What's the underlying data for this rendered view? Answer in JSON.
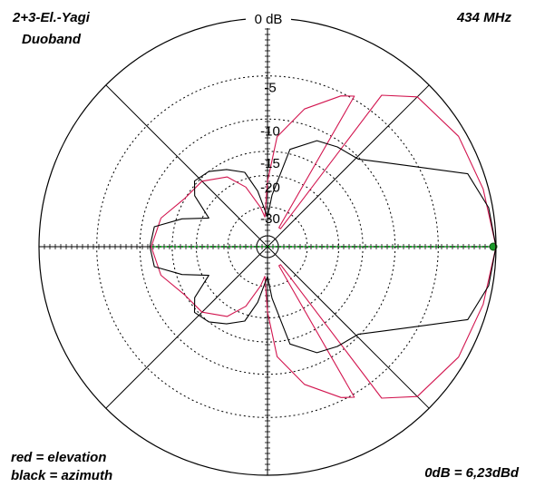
{
  "chart_data": {
    "type": "polar",
    "title": "2+3-El.-Yagi",
    "subtitle": "Duoband",
    "frequency": "434 MHz",
    "legend_notes": [
      "red = elevation",
      "black = azimuth"
    ],
    "reference": "0dB = 6,23dBd",
    "radial_scale": "arrl-log",
    "rticks": [
      {
        "value": 0,
        "label": "0 dB"
      },
      -5,
      -10,
      -15,
      -20,
      -30
    ],
    "series": [
      {
        "name": "elevation",
        "color": "#d2154f",
        "theta": [
          -180,
          -165,
          -150,
          -135,
          -120,
          -110,
          -100,
          -95,
          -90,
          -85,
          -75,
          -64,
          -60,
          -59,
          -54,
          -53,
          -45,
          -30,
          -15,
          0,
          15,
          30,
          45,
          53,
          54,
          59,
          60,
          64,
          75,
          85,
          90,
          95,
          100,
          110,
          120,
          135,
          150,
          165,
          180
        ],
        "values": [
          -11.6,
          -12.5,
          -14.9,
          -15.5,
          -17.9,
          -22,
          -30,
          -35,
          -21.5,
          -12.5,
          -8.1,
          -5.3,
          -4.7,
          -40,
          -40,
          -3.2,
          -1.3,
          -0.6,
          -0.4,
          0,
          -0.4,
          -0.6,
          -1.3,
          -3.2,
          -40,
          -40,
          -4.7,
          -5.3,
          -8.1,
          -12.5,
          -21.5,
          -35,
          -30,
          -22,
          -17.9,
          -15.5,
          -14.9,
          -12.5,
          -11.6
        ]
      },
      {
        "name": "azimuth",
        "color": "#000000",
        "theta": [
          -170,
          -162,
          -154,
          -145,
          -138,
          -128,
          -118,
          -107,
          -100,
          -90,
          -85,
          -77,
          -65,
          -55,
          -44,
          -36,
          -28,
          -20,
          -10,
          0,
          10,
          20,
          28,
          36,
          44,
          55,
          65,
          77,
          85,
          90,
          100,
          107,
          118,
          128,
          138,
          145,
          154,
          162,
          170,
          180
        ],
        "values": [
          -11.8,
          -16,
          -21.5,
          -16.2,
          -14.5,
          -15,
          -16.5,
          -18.5,
          -24,
          -35,
          -25.5,
          -14.2,
          -11.5,
          -10.8,
          -10.2,
          -8,
          -5.1,
          -1.2,
          -0.3,
          0,
          -0.3,
          -1.2,
          -5.1,
          -8,
          -10.2,
          -10.8,
          -11.5,
          -14.2,
          -25.5,
          -35,
          -24,
          -18.5,
          -16.5,
          -15,
          -14.5,
          -16.2,
          -21.5,
          -16,
          -11.8,
          -11.4
        ]
      }
    ]
  }
}
